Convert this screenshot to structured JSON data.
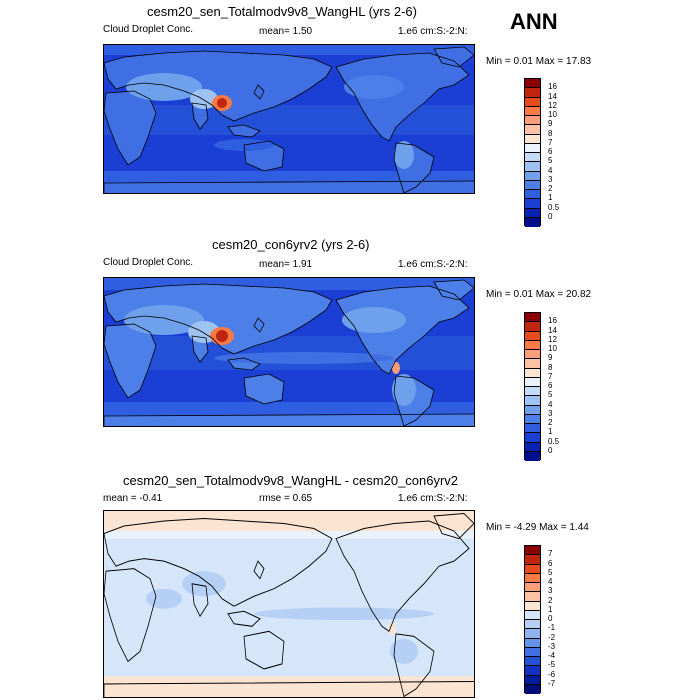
{
  "season": "ANN",
  "panels": [
    {
      "title": "cesm20_sen_Totalmodv9v8_WangHL (yrs 2-6)",
      "left_text": "Cloud Droplet Conc.",
      "center_text": "mean=   1.50",
      "right_text": "1.e6 cm:S:-2:N:",
      "minmax": "Min =   0.01 Max =  17.83",
      "colors": [
        "#8B0000",
        "#C0260F",
        "#E64B1E",
        "#F57A45",
        "#FA9E78",
        "#FCC2A5",
        "#FCE4D2",
        "#EAF2FC",
        "#C6DBF7",
        "#9EC2F2",
        "#6FA0EC",
        "#4C7FE7",
        "#2F5FE0",
        "#1B3FD4",
        "#0A22B4",
        "#000E8C"
      ],
      "labels": [
        "16",
        "14",
        "12",
        "10",
        "9",
        "8",
        "7",
        "6",
        "5",
        "4",
        "3",
        "2",
        "1",
        "0.5",
        "0"
      ]
    },
    {
      "title": "cesm20_con6yrv2 (yrs 2-6)",
      "left_text": "Cloud Droplet Conc.",
      "center_text": "mean=   1.91",
      "right_text": "1.e6 cm:S:-2:N:",
      "minmax": "Min =   0.01 Max =  20.82",
      "colors": [
        "#8B0000",
        "#C0260F",
        "#E64B1E",
        "#F57A45",
        "#FA9E78",
        "#FCC2A5",
        "#FCE4D2",
        "#EAF2FC",
        "#C6DBF7",
        "#9EC2F2",
        "#6FA0EC",
        "#4C7FE7",
        "#2F5FE0",
        "#1B3FD4",
        "#0A22B4",
        "#000E8C"
      ],
      "labels": [
        "16",
        "14",
        "12",
        "10",
        "9",
        "8",
        "7",
        "6",
        "5",
        "4",
        "3",
        "2",
        "1",
        "0.5",
        "0"
      ]
    },
    {
      "title": "cesm20_sen_Totalmodv9v8_WangHL - cesm20_con6yrv2",
      "left_text": "mean =  -0.41",
      "center_text": "rmse =   0.65",
      "right_text": "1.e6 cm:S:-2:N:",
      "minmax": "Min =  -4.29 Max =   1.44",
      "colors": [
        "#8B0000",
        "#C0260F",
        "#E64B1E",
        "#F57A45",
        "#FA9E78",
        "#FCC2A5",
        "#FCE4D2",
        "#D6E6FA",
        "#B6D0F5",
        "#8EB3EF",
        "#6592E9",
        "#3F6FE2",
        "#2450D8",
        "#1230C2",
        "#031C9C",
        "#000C78"
      ],
      "labels": [
        "7",
        "6",
        "5",
        "4",
        "3",
        "2",
        "1",
        "0",
        "-1",
        "-2",
        "-3",
        "-4",
        "-5",
        "-6",
        "-7"
      ]
    }
  ]
}
